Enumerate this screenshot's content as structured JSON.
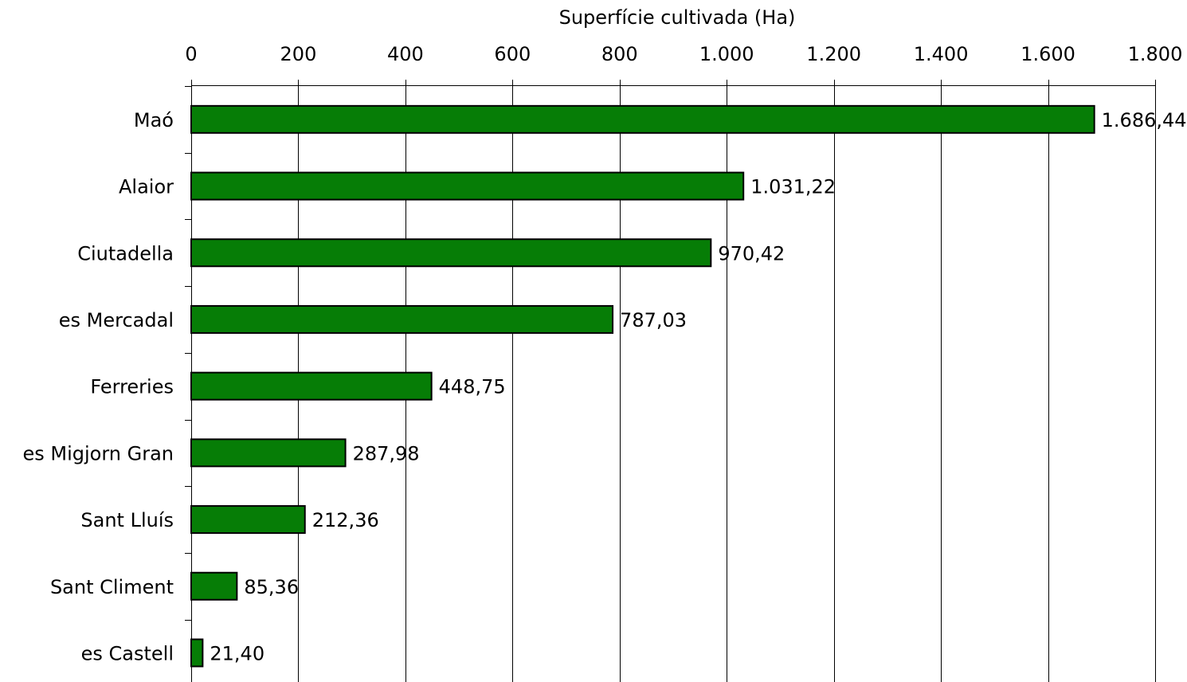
{
  "chart_data": {
    "type": "bar",
    "orientation": "horizontal",
    "xlabel": "Superfície cultivada (Ha)",
    "xlim": [
      0,
      1800
    ],
    "x_ticks": [
      0,
      200,
      400,
      600,
      800,
      1000,
      1200,
      1400,
      1600,
      1800
    ],
    "x_tick_labels": [
      "0",
      "200",
      "400",
      "600",
      "800",
      "1.000",
      "1.200",
      "1.400",
      "1.600",
      "1.800"
    ],
    "x_axis_position": "top",
    "grid": "vertical",
    "categories": [
      "Maó",
      "Alaior",
      "Ciutadella",
      "es Mercadal",
      "Ferreries",
      "es Migjorn Gran",
      "Sant Lluís",
      "Sant Climent",
      "es Castell"
    ],
    "values": [
      1686.44,
      1031.22,
      970.42,
      787.03,
      448.75,
      287.98,
      212.36,
      85.36,
      21.4
    ],
    "value_labels": [
      "1.686,44",
      "1.031,22",
      "970,42",
      "787,03",
      "448,75",
      "287,98",
      "212,36",
      "85,36",
      "21,40"
    ],
    "bar_color": "#067d06",
    "bar_edge_color": "#000000"
  }
}
